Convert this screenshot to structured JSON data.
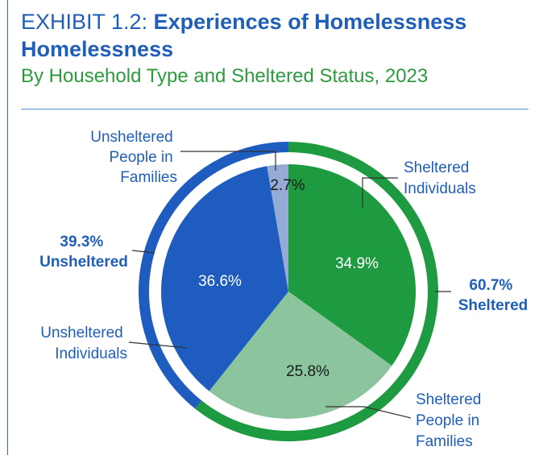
{
  "header": {
    "title_prefix": "EXHIBIT 1.2:",
    "title_main": "Experiences of Homelessness",
    "title_line2": "Homelessness",
    "subtitle": "By Household Type and Sheltered Status, 2023"
  },
  "chart_data": {
    "type": "pie",
    "inner": {
      "slices": [
        {
          "label": "Sheltered Individuals",
          "value": 34.9,
          "value_label": "34.9%",
          "color": "#1e9a41",
          "label_color": "#ffffff"
        },
        {
          "label": "Sheltered People in Families",
          "value": 25.8,
          "value_label": "25.8%",
          "color": "#8cc59d",
          "label_color": "#1a1a1a"
        },
        {
          "label": "Unsheltered Individuals",
          "value": 36.6,
          "value_label": "36.6%",
          "color": "#1f5cc0",
          "label_color": "#ffffff"
        },
        {
          "label": "Unsheltered People in Families",
          "value": 2.7,
          "value_label": "2.7%",
          "color": "#94abd6",
          "label_color": "#1a1a1a"
        }
      ]
    },
    "outer": {
      "slices": [
        {
          "label": "Sheltered",
          "value": 60.7,
          "value_label": "60.7%",
          "color": "#1e9a41"
        },
        {
          "label": "Unsheltered",
          "value": 39.3,
          "value_label": "39.3%",
          "color": "#1f5cc0"
        }
      ]
    },
    "annotations": {
      "sheltered_individuals": [
        "Sheltered",
        "Individuals"
      ],
      "sheltered_families": [
        "Sheltered",
        "People in",
        "Families"
      ],
      "unsheltered_individuals": [
        "Unsheltered",
        "Individuals"
      ],
      "unsheltered_families": [
        "Unsheltered",
        "People in",
        "Families"
      ],
      "sheltered_total": [
        "60.7%",
        "Sheltered"
      ],
      "unsheltered_total": [
        "39.3%",
        "Unsheltered"
      ]
    },
    "colors": {
      "label_text": "#1f5fb7",
      "leader": "#333333"
    }
  }
}
